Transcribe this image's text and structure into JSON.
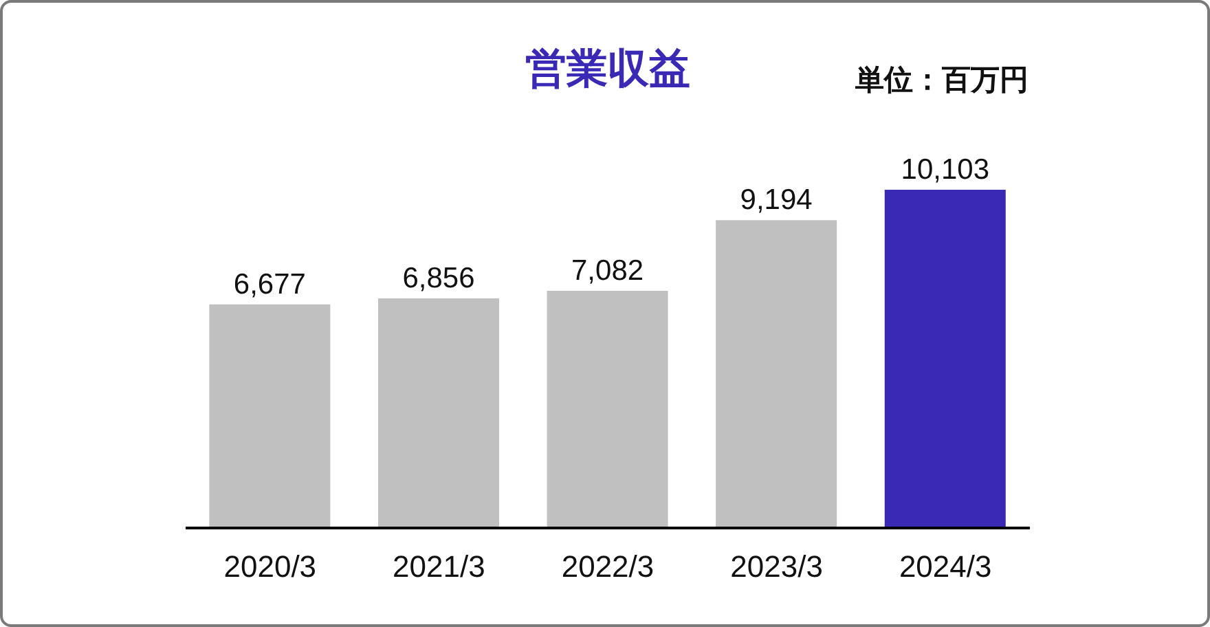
{
  "chart_data": {
    "type": "bar",
    "title": "営業収益",
    "annotations": [
      "単位：百万円"
    ],
    "categories": [
      "2020/3",
      "2021/3",
      "2022/3",
      "2023/3",
      "2024/3"
    ],
    "values": [
      6677,
      6856,
      7082,
      9194,
      10103
    ],
    "value_labels": [
      "6,677",
      "6,856",
      "7,082",
      "9,194",
      "10,103"
    ],
    "colors": [
      "#c0c0c0",
      "#c0c0c0",
      "#c0c0c0",
      "#c0c0c0",
      "#3a29b5"
    ]
  }
}
